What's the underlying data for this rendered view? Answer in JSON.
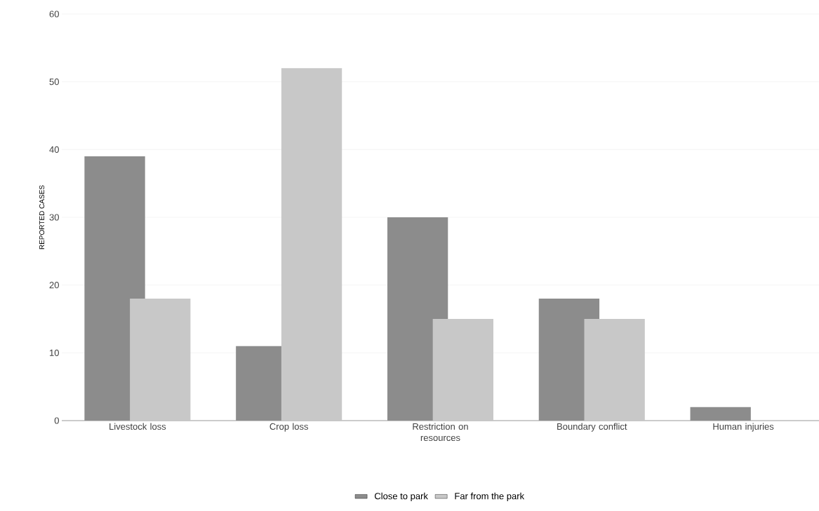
{
  "chart_data": {
    "type": "bar",
    "ylabel": "REPORTED CASES",
    "categories": [
      "Livestock loss",
      "Crop loss",
      "Restriction on resources",
      "Boundary conflict",
      "Human injuries"
    ],
    "series": [
      {
        "name": "Close to park",
        "color": "#8c8c8c",
        "values": [
          39,
          11,
          30,
          18,
          2
        ]
      },
      {
        "name": "Far from the park",
        "color": "#c8c8c8",
        "values": [
          18,
          52,
          15,
          15,
          0
        ]
      }
    ],
    "ylim": [
      0,
      60
    ],
    "yticks": [
      0,
      10,
      20,
      30,
      40,
      50,
      60
    ],
    "grid": "y",
    "legend": "bottom"
  }
}
